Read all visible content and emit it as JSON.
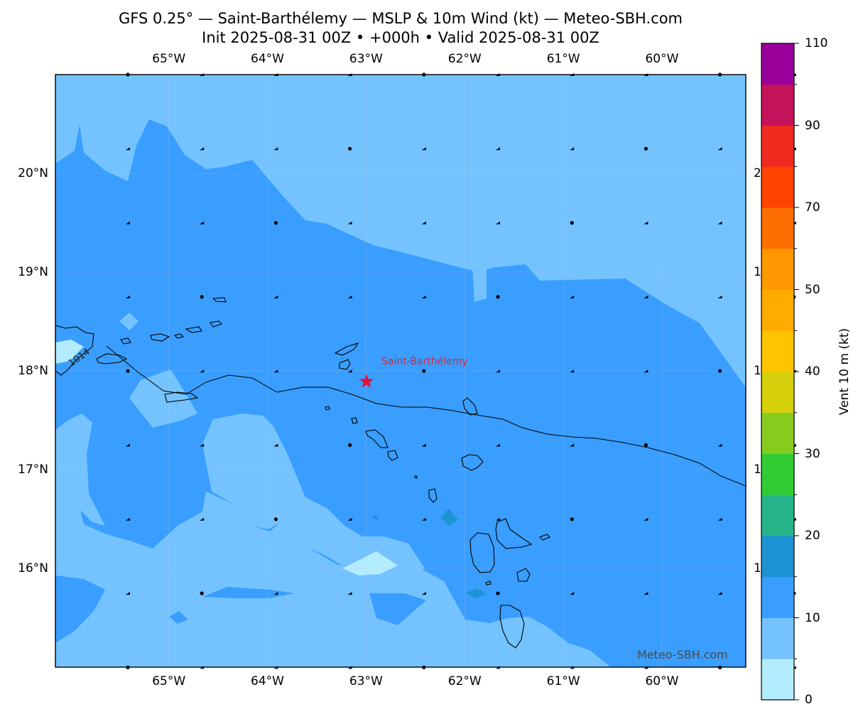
{
  "title_line1": "GFS 0.25° — Saint-Barthélemy — MSLP & 10m Wind (kt) — Meteo-SBH.com",
  "title_line2": "Init 2025-08-31 00Z • +000h • Valid 2025-08-31 00Z",
  "map": {
    "lon_range": [
      -66.15,
      -59.15
    ],
    "lat_range": [
      15.0,
      21.0
    ],
    "lon_ticks": [
      "65°W",
      "64°W",
      "63°W",
      "62°W",
      "61°W",
      "60°W"
    ],
    "lat_ticks": [
      "20°N",
      "19°N",
      "18°N",
      "17°N",
      "16°N"
    ],
    "right_tick_fragments": [
      "2",
      "1",
      "1",
      "1",
      "1"
    ],
    "place_label": "Saint-Barthélemy",
    "place_marker": "star-marker",
    "place_lon": -62.85,
    "place_lat": 17.9,
    "isobar_label": "1014",
    "watermark": "Meteo-SBH.com",
    "colors": {
      "land_outline": "#000000",
      "marker": "#e0143c",
      "place_label": "#d7263d"
    }
  },
  "colorbar": {
    "label": "Vent 10 m (kt)",
    "tick_labels": [
      "0",
      "10",
      "20",
      "30",
      "40",
      "50",
      "70",
      "90",
      "110"
    ],
    "tick_values": [
      0,
      10,
      20,
      30,
      40,
      50,
      70,
      90,
      110
    ],
    "levels": [
      0,
      5,
      10,
      15,
      20,
      25,
      30,
      35,
      40,
      45,
      50,
      60,
      70,
      80,
      90,
      100,
      110
    ],
    "colors": [
      "#b3ecff",
      "#74c3ff",
      "#3a9eff",
      "#1d93d4",
      "#27b48a",
      "#31cc34",
      "#85cc1f",
      "#d6cf0b",
      "#ffc400",
      "#ffab00",
      "#ff9800",
      "#ff6e00",
      "#ff4400",
      "#ef2a1f",
      "#c4145a",
      "#990099"
    ]
  }
}
